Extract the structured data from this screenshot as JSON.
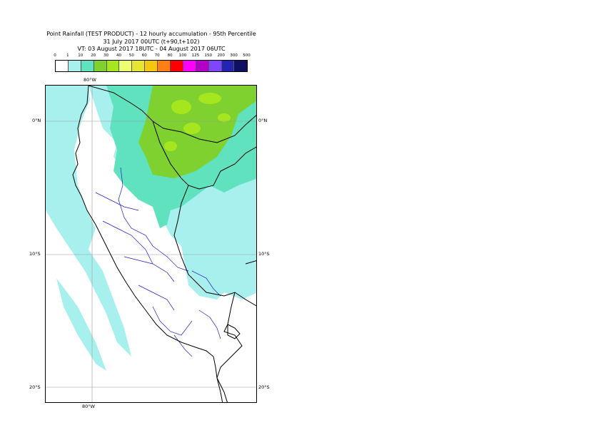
{
  "title": {
    "line1": "Point Rainfall (TEST PRODUCT) - 12 hourly accumulation - 95th Percentile",
    "line2": "31 July 2017 00UTC (t+90,t+102)",
    "line3": "VT: 03 August 2017 18UTC - 04 August 2017 06UTC"
  },
  "legend": {
    "thresholds": [
      "0",
      "1",
      "10",
      "20",
      "30",
      "40",
      "50",
      "60",
      "70",
      "80",
      "100",
      "125",
      "150",
      "200",
      "300",
      "500"
    ],
    "colors": [
      "#ffffff",
      "#a8f0ee",
      "#5fe2bd",
      "#7ed12e",
      "#a6e61e",
      "#ecff73",
      "#e6e632",
      "#f5c80f",
      "#ff7f12",
      "#fe0000",
      "#ff00ff",
      "#b200c8",
      "#7f45ff",
      "#2424b4",
      "#0f0f64"
    ]
  },
  "map": {
    "colors": {
      "land_outline": "#000000",
      "admin_boundary": "#1e1ecc",
      "gridline": "#999999",
      "rain_light": "#a8f0ee",
      "rain_moderate": "#5fe2bd",
      "rain_heavy": "#7ed12e",
      "rain_heavier": "#a6e61e"
    },
    "labels": {
      "lon_top": "80°W",
      "lon_bottom": "80°W",
      "lat_0_left": "0°N",
      "lat_0_right": "0°N",
      "lat_10_left": "10°S",
      "lat_10_right": "10°S",
      "lat_20_left": "20°S",
      "lat_20_right": "20°S"
    }
  }
}
